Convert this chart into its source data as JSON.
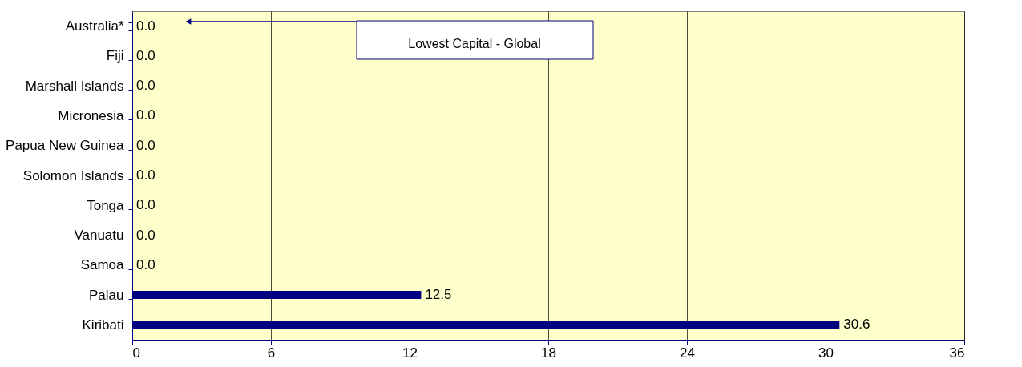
{
  "chart_data": {
    "type": "bar",
    "orientation": "horizontal",
    "categories": [
      "Australia*",
      "Fiji",
      "Marshall Islands",
      "Micronesia",
      "Papua New Guinea",
      "Solomon Islands",
      "Tonga",
      "Vanuatu",
      "Samoa",
      "Palau",
      "Kiribati"
    ],
    "values": [
      0,
      0,
      0,
      0,
      0,
      0,
      0,
      0,
      0,
      12.5,
      30.6
    ],
    "value_labels": [
      "0.0",
      "0.0",
      "0.0",
      "0.0",
      "0.0",
      "0.0",
      "0.0",
      "0.0",
      "0.0",
      "12.5",
      "30.6"
    ],
    "color": "#000080",
    "xlim": [
      0,
      36
    ],
    "xticks": [
      0,
      6,
      12,
      18,
      24,
      30,
      36
    ],
    "grid": "x",
    "annotations": [
      "Lowest Capital - Global"
    ]
  }
}
